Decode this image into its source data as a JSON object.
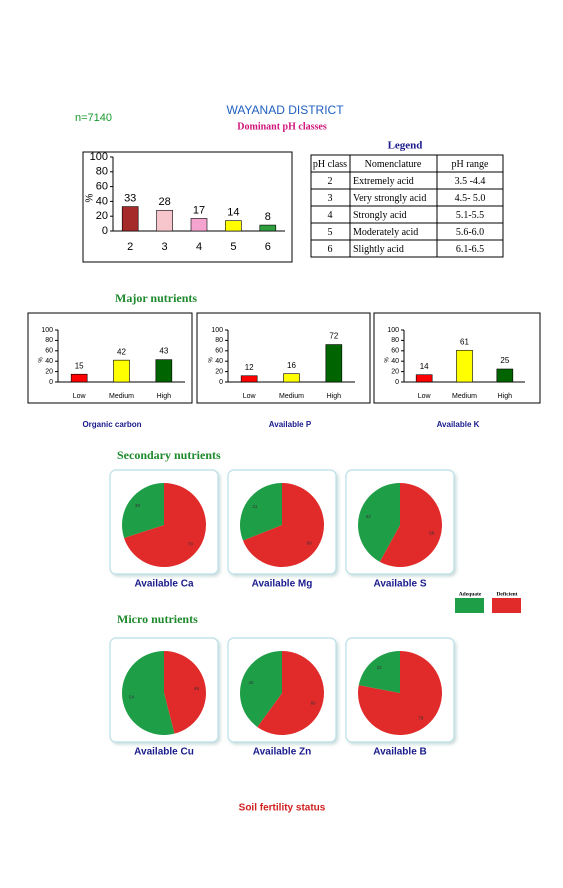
{
  "header": {
    "sample_size": "n=7140",
    "title": "WAYANAD DISTRICT"
  },
  "chart_data": [
    {
      "type": "bar",
      "title": "Dominant pH classes",
      "y_label": "%",
      "categories": [
        "2",
        "3",
        "4",
        "5",
        "6"
      ],
      "values": [
        33,
        28,
        17,
        14,
        8
      ],
      "colors": [
        "#a52a2a",
        "#f7c6cc",
        "#f5a3cf",
        "#ffff00",
        "#2e9e3e"
      ],
      "ylim": [
        0,
        100
      ],
      "yticks": [
        0,
        20,
        40,
        60,
        80,
        100
      ]
    },
    {
      "type": "bar",
      "title": "Organic carbon",
      "y_label": "%",
      "categories": [
        "Low",
        "Medium",
        "High"
      ],
      "values": [
        15,
        42,
        43
      ],
      "colors": [
        "#ff0000",
        "#ffff00",
        "#006400"
      ],
      "ylim": [
        0,
        100
      ],
      "yticks": [
        0,
        20,
        40,
        60,
        80,
        100
      ]
    },
    {
      "type": "bar",
      "title": "Available  P",
      "y_label": "%",
      "categories": [
        "Low",
        "Medium",
        "High"
      ],
      "values": [
        12,
        16,
        72
      ],
      "colors": [
        "#ff0000",
        "#ffff00",
        "#006400"
      ],
      "ylim": [
        0,
        100
      ],
      "yticks": [
        0,
        20,
        40,
        60,
        80,
        100
      ]
    },
    {
      "type": "bar",
      "title": "Available  K",
      "y_label": "%",
      "categories": [
        "Low",
        "Medium",
        "High"
      ],
      "values": [
        14,
        61,
        25
      ],
      "colors": [
        "#ff0000",
        "#ffff00",
        "#006400"
      ],
      "ylim": [
        0,
        100
      ],
      "yticks": [
        0,
        20,
        40,
        60,
        80,
        100
      ]
    },
    {
      "type": "pie",
      "title": "Available  Ca",
      "categories": [
        "Adequate",
        "Deficient"
      ],
      "values": [
        30,
        70
      ],
      "colors": [
        "#1f9e48",
        "#e12a2a"
      ]
    },
    {
      "type": "pie",
      "title": "Available  Mg",
      "categories": [
        "Adequate",
        "Deficient"
      ],
      "values": [
        31,
        69
      ],
      "colors": [
        "#1f9e48",
        "#e12a2a"
      ]
    },
    {
      "type": "pie",
      "title": "Available  S",
      "categories": [
        "Adequate",
        "Deficient"
      ],
      "values": [
        42,
        58
      ],
      "colors": [
        "#1f9e48",
        "#e12a2a"
      ]
    },
    {
      "type": "pie",
      "title": "Available Cu",
      "categories": [
        "Adequate",
        "Deficient"
      ],
      "values": [
        54,
        46
      ],
      "colors": [
        "#1f9e48",
        "#e12a2a"
      ]
    },
    {
      "type": "pie",
      "title": "Available  Zn",
      "categories": [
        "Adequate",
        "Deficient"
      ],
      "values": [
        40,
        60
      ],
      "colors": [
        "#1f9e48",
        "#e12a2a"
      ]
    },
    {
      "type": "pie",
      "title": "Available  B",
      "categories": [
        "Adequate",
        "Deficient"
      ],
      "values": [
        22,
        78
      ],
      "colors": [
        "#1f9e48",
        "#e12a2a"
      ]
    }
  ],
  "legend": {
    "title": "Legend",
    "columns": [
      "pH class",
      "Nomenclature",
      "pH range"
    ],
    "rows": [
      [
        "2",
        "Extremely acid",
        "3.5 -4.4"
      ],
      [
        "3",
        "Very strongly acid",
        "4.5- 5.0"
      ],
      [
        "4",
        "Strongly acid",
        "5.1-5.5"
      ],
      [
        "5",
        "Moderately acid",
        "5.6-6.0"
      ],
      [
        "6",
        "Slightly acid",
        "6.1-6.5"
      ]
    ]
  },
  "sections": [
    "Major nutrients",
    "Secondary nutrients",
    "Micro nutrients"
  ],
  "footer": "Soil fertility status"
}
